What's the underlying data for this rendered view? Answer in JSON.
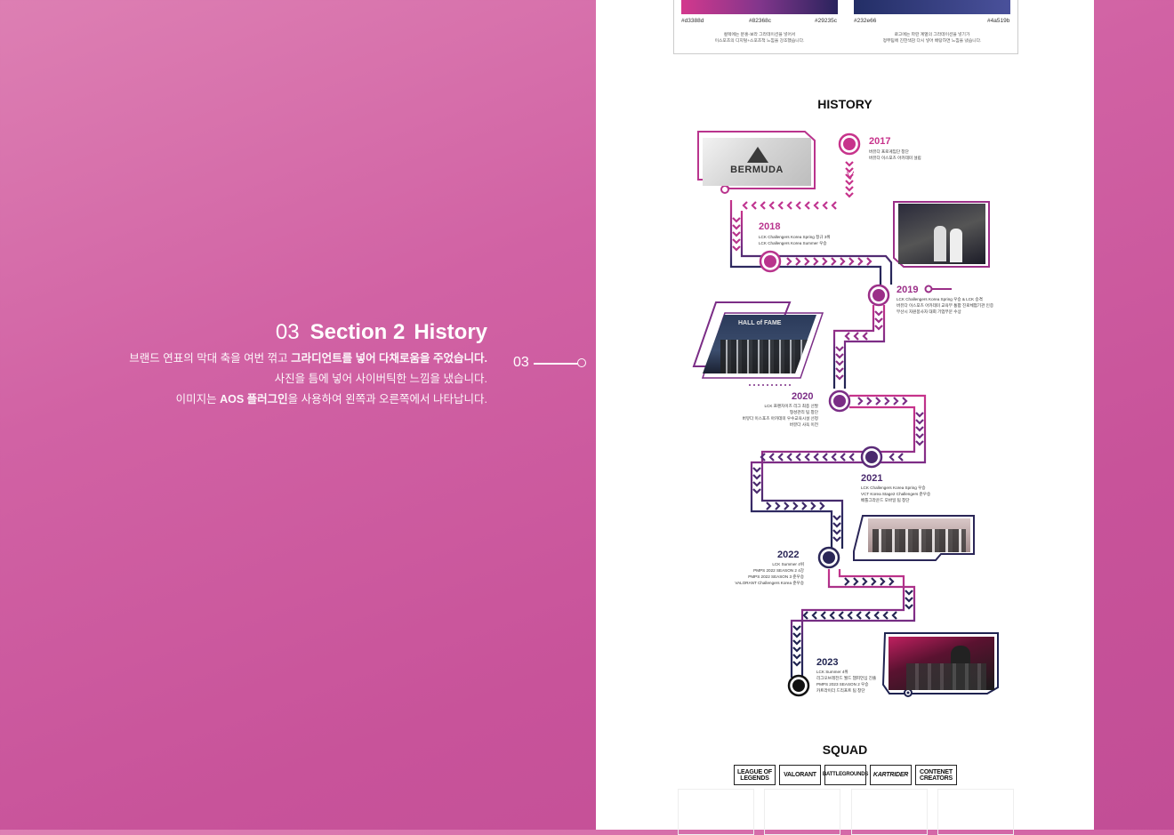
{
  "section": {
    "number": "03",
    "title": "Section 2",
    "subtitle": "History",
    "desc_line1_plain": "브랜드 연표의 막대 축을 여번 꺾고 ",
    "desc_line1_bold": "그라디언트를 넣어 다채로움을 주었습니다.",
    "desc_line2": "사진을 틈에 넣어 사이버틱한 느낌을 냈습니다.",
    "desc_line3_plain_a": "이미지는 ",
    "desc_line3_bold": "AOS 플러그인",
    "desc_line3_plain_b": "을 사용하여 왼쪽과 오른쪽에서 나타납니다.",
    "marker": "03"
  },
  "palette": {
    "colors": [
      "#d3388d",
      "#82368c",
      "#29235c",
      "#232e66",
      "#4a519b"
    ],
    "hex_labels": [
      "#d3388d",
      "#82368c",
      "#29235c",
      "#232e66",
      "#4a519b"
    ],
    "note_left": "컬렉에는 분홍-보라 그라데이션을 넣어서\n이스포츠의 디지털+스포츠적 느낌을 강조했습니다.",
    "note_right": "로고에는 파란 계열의 그라데이션을 넣기가\n정부팀에 진한색감 다시 넣어 배탕하면 느낌을 냈습니다."
  },
  "history": {
    "heading": "HISTORY",
    "years": [
      {
        "year": "2017",
        "color": "#c7338b",
        "lines": [
          "버뮤다 프로게임단 창단",
          "버뮤다 이스포츠 아카데미 설립"
        ]
      },
      {
        "year": "2018",
        "color": "#b9348d",
        "lines": [
          "LCK Challengers Korea Spring 정규 3위",
          "LCK Challengers Korea Summer 우승"
        ]
      },
      {
        "year": "2019",
        "color": "#9b2f88",
        "lines": [
          "LCK Challengers Korea Spring 우승 & LCK 승격",
          "버뮤다 이스포츠 아카데미 교육부 통합 진로체험기관 인증",
          "부산시 자원봉사자 대회 기업부문 수상"
        ]
      },
      {
        "year": "2020",
        "color": "#7b2d86",
        "lines": [
          "LCK 프랜차이즈 리그 최종 선발",
          "형성관리 팀 창단",
          "버뮤다 이스포츠 아카데미 우수교육시설 선정",
          "버뮤다 사옥 이전"
        ]
      },
      {
        "year": "2021",
        "color": "#4a2a6e",
        "lines": [
          "LCK Challengers Korea Spring 우승",
          "VCT Korea Stage2 Challengers 준우승",
          "배틀그라운드 모바일 팀 창단"
        ]
      },
      {
        "year": "2022",
        "color": "#2a2657",
        "lines": [
          "LCK Summer 4위",
          "PMPS 2022 SEASON 2 4강",
          "PMPS 2022 SEASON 3 준우승",
          "VALORANT Challengers Korea 준우승"
        ]
      },
      {
        "year": "2023",
        "color": "#1f2350",
        "lines": [
          "LCK Summer 4위",
          "리그오브레전드 월드 챔피언십 진출",
          "PMPS 2023 SEASON 2 우승",
          "카트라이더 드리프트 팀 창단"
        ]
      }
    ],
    "logo_text": "BERMUDA",
    "photo_text": "HALL of FAME"
  },
  "squad": {
    "heading": "SQUAD",
    "logos": [
      "LEAGUE OF LEGENDS",
      "VALORANT",
      "BATTLEGROUNDS",
      "KARTRIDER",
      "CONTENET CREATORS"
    ]
  }
}
